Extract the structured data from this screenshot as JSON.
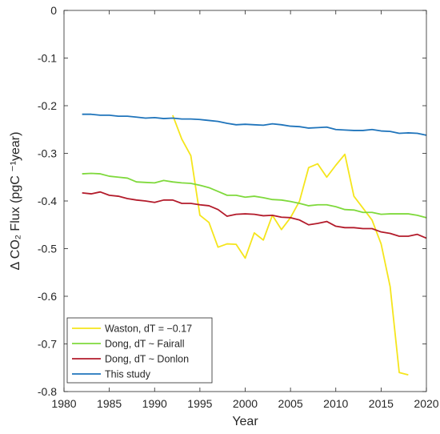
{
  "chart_data": {
    "type": "line",
    "xlabel": "Year",
    "ylabel": "Δ CO₂ Flux (pgC ⁻¹year)",
    "xlim": [
      1980,
      2020
    ],
    "ylim": [
      -0.8,
      0
    ],
    "x_ticks": [
      1980,
      1985,
      1990,
      1995,
      2000,
      2005,
      2010,
      2015,
      2020
    ],
    "y_ticks": [
      0,
      -0.1,
      -0.2,
      -0.3,
      -0.4,
      -0.5,
      -0.6,
      -0.7,
      -0.8
    ],
    "x_tick_labels": [
      "1980",
      "1985",
      "1990",
      "1995",
      "2000",
      "2005",
      "2010",
      "2015",
      "2020"
    ],
    "y_tick_labels": [
      "0",
      "-0.1",
      "-0.2",
      "-0.3",
      "-0.4",
      "-0.5",
      "-0.6",
      "-0.7",
      "-0.8"
    ],
    "grid": false,
    "legend_position": "bottom-left",
    "series": [
      {
        "name": "Waston, dT = −0.17",
        "color": "#f5e51c",
        "x": [
          1992,
          1993,
          1994,
          1995,
          1996,
          1997,
          1998,
          1999,
          2000,
          2001,
          2002,
          2003,
          2004,
          2005,
          2006,
          2007,
          2008,
          2009,
          2010,
          2011,
          2012,
          2013,
          2014,
          2015,
          2016,
          2017,
          2018
        ],
        "y": [
          -0.22,
          -0.27,
          -0.305,
          -0.43,
          -0.445,
          -0.497,
          -0.49,
          -0.491,
          -0.52,
          -0.467,
          -0.482,
          -0.43,
          -0.46,
          -0.435,
          -0.4,
          -0.33,
          -0.322,
          -0.35,
          -0.325,
          -0.302,
          -0.39,
          -0.415,
          -0.44,
          -0.49,
          -0.58,
          -0.76,
          -0.765
        ]
      },
      {
        "name": "Dong, dT ~ Fairall",
        "color": "#7fd93c",
        "x": [
          1982,
          1983,
          1984,
          1985,
          1986,
          1987,
          1988,
          1989,
          1990,
          1991,
          1992,
          1993,
          1994,
          1995,
          1996,
          1997,
          1998,
          1999,
          2000,
          2001,
          2002,
          2003,
          2004,
          2005,
          2006,
          2007,
          2008,
          2009,
          2010,
          2011,
          2012,
          2013,
          2014,
          2015,
          2016,
          2017,
          2018,
          2019,
          2020
        ],
        "y": [
          -0.343,
          -0.342,
          -0.343,
          -0.348,
          -0.35,
          -0.352,
          -0.36,
          -0.361,
          -0.362,
          -0.357,
          -0.36,
          -0.362,
          -0.363,
          -0.367,
          -0.372,
          -0.38,
          -0.388,
          -0.388,
          -0.392,
          -0.39,
          -0.393,
          -0.397,
          -0.398,
          -0.401,
          -0.405,
          -0.41,
          -0.408,
          -0.408,
          -0.412,
          -0.418,
          -0.419,
          -0.424,
          -0.424,
          -0.428,
          -0.427,
          -0.427,
          -0.427,
          -0.43,
          -0.435
        ]
      },
      {
        "name": "Dong, dT ~ Donlon",
        "color": "#b31b2b",
        "x": [
          1982,
          1983,
          1984,
          1985,
          1986,
          1987,
          1988,
          1989,
          1990,
          1991,
          1992,
          1993,
          1994,
          1995,
          1996,
          1997,
          1998,
          1999,
          2000,
          2001,
          2002,
          2003,
          2004,
          2005,
          2006,
          2007,
          2008,
          2009,
          2010,
          2011,
          2012,
          2013,
          2014,
          2015,
          2016,
          2017,
          2018,
          2019,
          2020
        ],
        "y": [
          -0.383,
          -0.385,
          -0.381,
          -0.388,
          -0.39,
          -0.395,
          -0.398,
          -0.4,
          -0.403,
          -0.398,
          -0.398,
          -0.405,
          -0.405,
          -0.408,
          -0.41,
          -0.418,
          -0.432,
          -0.428,
          -0.427,
          -0.428,
          -0.431,
          -0.43,
          -0.434,
          -0.435,
          -0.44,
          -0.45,
          -0.447,
          -0.443,
          -0.453,
          -0.456,
          -0.456,
          -0.458,
          -0.458,
          -0.465,
          -0.468,
          -0.474,
          -0.474,
          -0.47,
          -0.478
        ]
      },
      {
        "name": "This study",
        "color": "#1f74bb",
        "x": [
          1982,
          1983,
          1984,
          1985,
          1986,
          1987,
          1988,
          1989,
          1990,
          1991,
          1992,
          1993,
          1994,
          1995,
          1996,
          1997,
          1998,
          1999,
          2000,
          2001,
          2002,
          2003,
          2004,
          2005,
          2006,
          2007,
          2008,
          2009,
          2010,
          2011,
          2012,
          2013,
          2014,
          2015,
          2016,
          2017,
          2018,
          2019,
          2020
        ],
        "y": [
          -0.218,
          -0.218,
          -0.22,
          -0.22,
          -0.222,
          -0.222,
          -0.224,
          -0.226,
          -0.225,
          -0.227,
          -0.226,
          -0.228,
          -0.228,
          -0.229,
          -0.231,
          -0.233,
          -0.237,
          -0.24,
          -0.239,
          -0.24,
          -0.241,
          -0.238,
          -0.24,
          -0.243,
          -0.244,
          -0.247,
          -0.246,
          -0.245,
          -0.25,
          -0.251,
          -0.252,
          -0.252,
          -0.25,
          -0.253,
          -0.254,
          -0.258,
          -0.257,
          -0.258,
          -0.262
        ]
      }
    ]
  }
}
